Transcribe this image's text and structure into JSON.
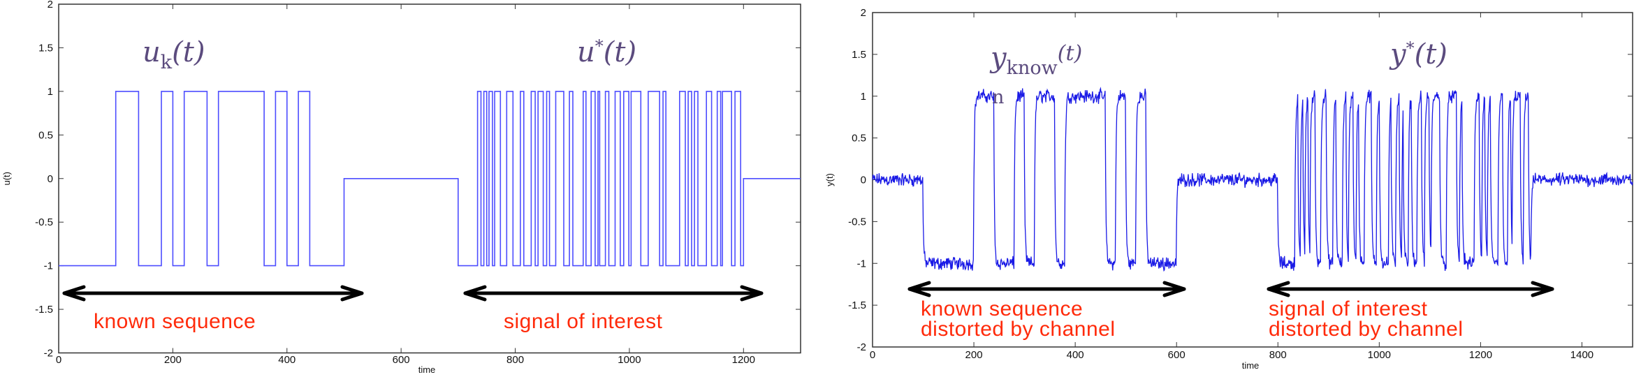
{
  "chart_data": [
    {
      "type": "line",
      "title": "",
      "xlabel": "time",
      "ylabel": "u(t)",
      "xlim": [
        0,
        1300
      ],
      "ylim": [
        -2,
        2
      ],
      "xticks": [
        "0",
        "200",
        "400",
        "600",
        "800",
        "1000",
        "1200"
      ],
      "yticks": [
        "2",
        "1.5",
        "1",
        "0.5",
        "0",
        "-0.5",
        "-1",
        "-1.5",
        "-2"
      ],
      "grid": false,
      "color": "#4d4dff",
      "step_segments": [
        [
          0,
          -1
        ],
        [
          100,
          1
        ],
        [
          140,
          -1
        ],
        [
          180,
          1
        ],
        [
          200,
          -1
        ],
        [
          220,
          1
        ],
        [
          260,
          -1
        ],
        [
          280,
          1
        ],
        [
          360,
          -1
        ],
        [
          380,
          1
        ],
        [
          400,
          -1
        ],
        [
          420,
          1
        ],
        [
          440,
          -1
        ],
        [
          500,
          0
        ],
        [
          700,
          -1
        ],
        [
          734,
          1
        ],
        [
          740,
          -1
        ],
        [
          745,
          1
        ],
        [
          750,
          -1
        ],
        [
          754,
          1
        ],
        [
          760,
          -1
        ],
        [
          764,
          1
        ],
        [
          774,
          -1
        ],
        [
          785,
          1
        ],
        [
          796,
          -1
        ],
        [
          809,
          1
        ],
        [
          815,
          -1
        ],
        [
          828,
          1
        ],
        [
          835,
          -1
        ],
        [
          840,
          1
        ],
        [
          849,
          -1
        ],
        [
          855,
          1
        ],
        [
          860,
          -1
        ],
        [
          871,
          1
        ],
        [
          885,
          -1
        ],
        [
          895,
          1
        ],
        [
          901,
          -1
        ],
        [
          919,
          1
        ],
        [
          924,
          -1
        ],
        [
          933,
          1
        ],
        [
          940,
          -1
        ],
        [
          945,
          1
        ],
        [
          948,
          -1
        ],
        [
          958,
          1
        ],
        [
          964,
          -1
        ],
        [
          975,
          1
        ],
        [
          984,
          -1
        ],
        [
          990,
          1
        ],
        [
          999,
          -1
        ],
        [
          1003,
          1
        ],
        [
          1020,
          -1
        ],
        [
          1033,
          1
        ],
        [
          1053,
          -1
        ],
        [
          1059,
          1
        ],
        [
          1064,
          -1
        ],
        [
          1088,
          1
        ],
        [
          1098,
          -1
        ],
        [
          1103,
          1
        ],
        [
          1109,
          -1
        ],
        [
          1114,
          1
        ],
        [
          1120,
          -1
        ],
        [
          1135,
          1
        ],
        [
          1144,
          -1
        ],
        [
          1154,
          1
        ],
        [
          1160,
          -1
        ],
        [
          1163,
          1
        ],
        [
          1179,
          -1
        ],
        [
          1185,
          1
        ],
        [
          1195,
          -1
        ],
        [
          1200,
          0
        ]
      ],
      "end": 1300,
      "annotations": {
        "known_label": {
          "main": "u",
          "sub": "k",
          "arg": "(t)"
        },
        "interest_label": {
          "main": "u",
          "sup": "*",
          "arg": "(t)"
        },
        "known_text": "known sequence",
        "interest_text": "signal of interest"
      }
    },
    {
      "type": "line",
      "title": "",
      "xlabel": "time",
      "ylabel": "y(t)",
      "xlim": [
        0,
        1500
      ],
      "ylim": [
        -2,
        2
      ],
      "xticks": [
        "0",
        "200",
        "400",
        "600",
        "800",
        "1000",
        "1200",
        "1400"
      ],
      "yticks": [
        "2",
        "1.5",
        "1",
        "0.5",
        "0",
        "-0.5",
        "-1",
        "-1.5",
        "-2"
      ],
      "grid": false,
      "color": "#1a1ae6",
      "derived_from": "u(t) delayed by 100 time units, low-pass filtered, plus noise",
      "delay": 100,
      "noise_amplitude": 0.07,
      "end": 1500,
      "annotations": {
        "known_label": {
          "main": "y",
          "sub": "know",
          "wrap": "n",
          "arg": "(t)"
        },
        "interest_label": {
          "main": "y",
          "sup": "*",
          "arg": "(t)"
        },
        "known_text_1": "known sequence",
        "known_text_2": "distorted by channel",
        "interest_text_1": "signal of interest",
        "interest_text_2": "distorted by channel"
      }
    }
  ]
}
